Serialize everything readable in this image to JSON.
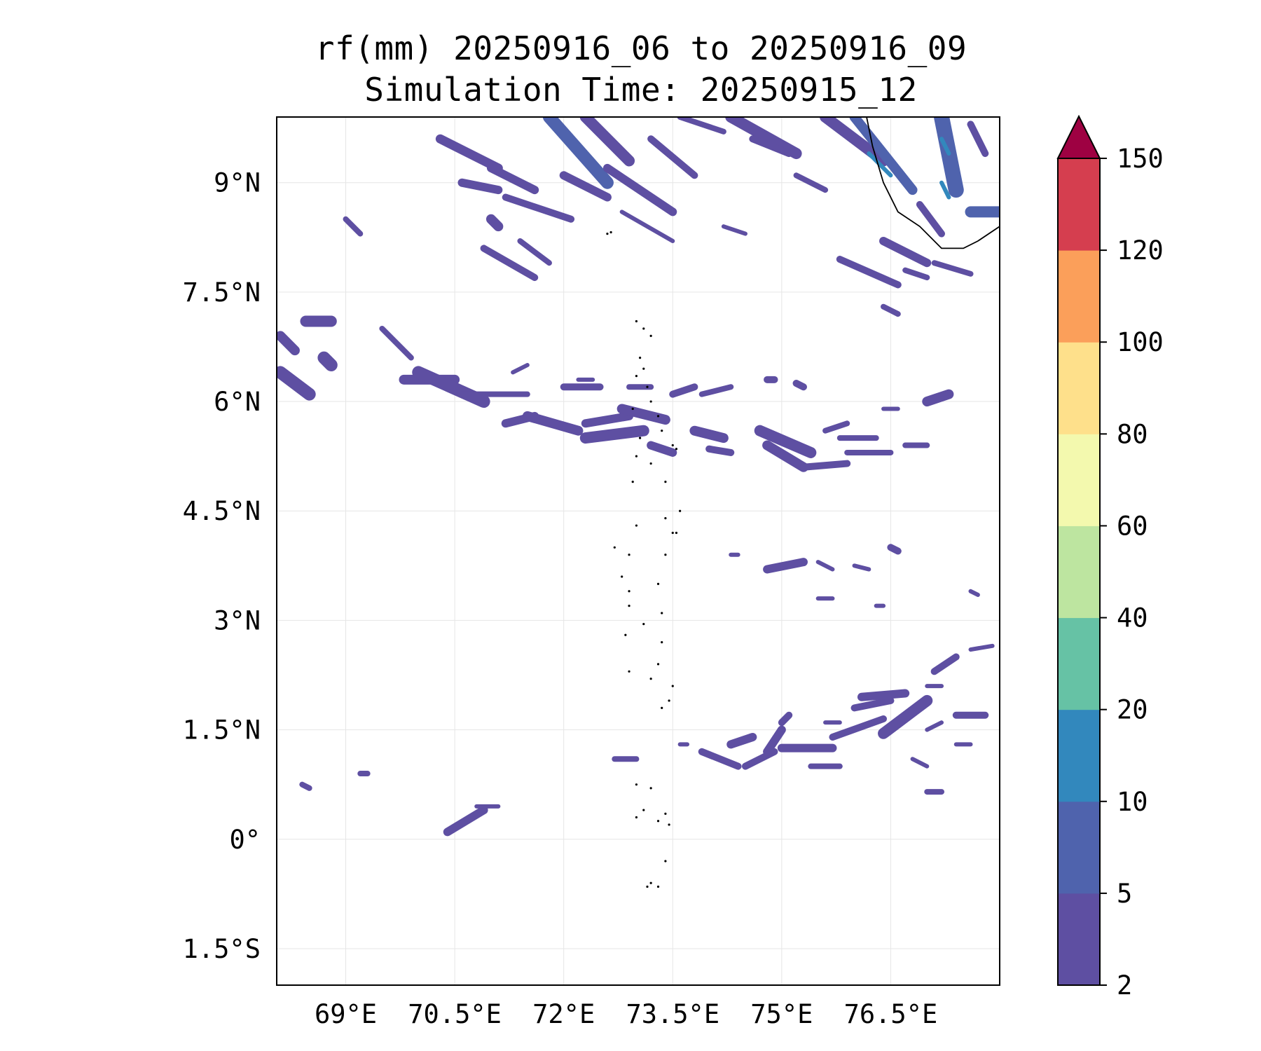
{
  "title": {
    "line1": "rf(mm) 20250916_06 to 20250916_09",
    "line2": "Simulation Time: 20250915_12"
  },
  "map": {
    "lon_range": [
      68.05,
      78.0
    ],
    "lat_range": [
      -2.0,
      9.9
    ],
    "lon_ticks": [
      {
        "value": 69.0,
        "label": "69°E"
      },
      {
        "value": 70.5,
        "label": "70.5°E"
      },
      {
        "value": 72.0,
        "label": "72°E"
      },
      {
        "value": 73.5,
        "label": "73.5°E"
      },
      {
        "value": 75.0,
        "label": "75°E"
      },
      {
        "value": 76.5,
        "label": "76.5°E"
      }
    ],
    "lat_ticks": [
      {
        "value": 9.0,
        "label": "9°N"
      },
      {
        "value": 7.5,
        "label": "7.5°N"
      },
      {
        "value": 6.0,
        "label": "6°N"
      },
      {
        "value": 4.5,
        "label": "4.5°N"
      },
      {
        "value": 3.0,
        "label": "3°N"
      },
      {
        "value": 1.5,
        "label": "1.5°N"
      },
      {
        "value": 0.0,
        "label": "0°"
      },
      {
        "value": -1.5,
        "label": "1.5°S"
      }
    ],
    "grid": true
  },
  "colorbar": {
    "extend": "max",
    "extend_color": "#9e0142",
    "levels": [
      {
        "label": "2",
        "color": "#5e4fa2"
      },
      {
        "label": "5",
        "color": "#4f63ad"
      },
      {
        "label": "10",
        "color": "#3288bd"
      },
      {
        "label": "20",
        "color": "#66c2a5"
      },
      {
        "label": "40",
        "color": "#bde5a0"
      },
      {
        "label": "60",
        "color": "#f3f9ae"
      },
      {
        "label": "80",
        "color": "#fee08b"
      },
      {
        "label": "100",
        "color": "#fb9f5a"
      },
      {
        "label": "120",
        "color": "#d53e4f"
      },
      {
        "label": "150",
        "color": ""
      }
    ]
  },
  "rain_color_light": "#5e4fa2",
  "rain_color_heavy": "#4f63ad"
}
